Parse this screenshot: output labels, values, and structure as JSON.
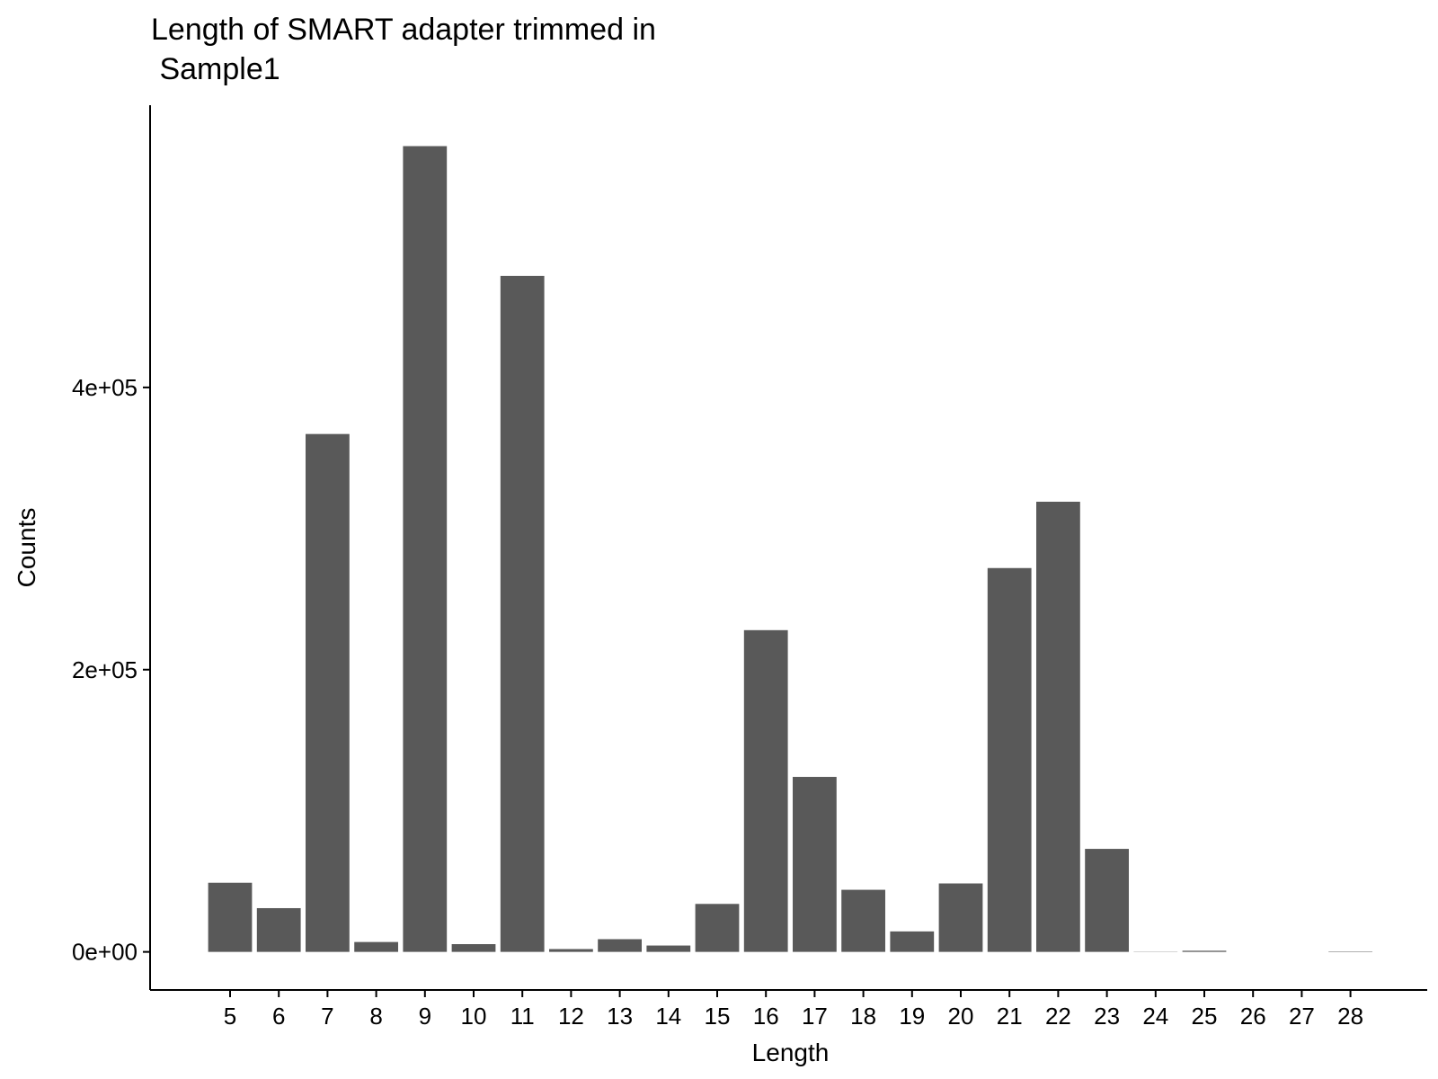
{
  "chart_data": {
    "type": "bar",
    "title_lines": [
      "Length of SMART adapter trimmed in",
      " Sample1"
    ],
    "xlabel": "Length",
    "ylabel": "Counts",
    "categories": [
      "5",
      "6",
      "7",
      "8",
      "9",
      "10",
      "11",
      "12",
      "13",
      "14",
      "15",
      "16",
      "17",
      "18",
      "19",
      "20",
      "21",
      "22",
      "23",
      "24",
      "25",
      "26",
      "27",
      "28"
    ],
    "values": [
      49000,
      31000,
      367000,
      7000,
      571000,
      5500,
      479000,
      2000,
      9000,
      4500,
      34000,
      228000,
      124000,
      44000,
      14500,
      48500,
      272000,
      319000,
      73000,
      150,
      800,
      0,
      0,
      300
    ],
    "ylim": [
      -27000,
      600000
    ],
    "yticks": [
      0,
      200000,
      400000
    ],
    "ytick_labels": [
      "0e+00",
      "2e+05",
      "4e+05"
    ],
    "bar_color": "#595959",
    "grid": false,
    "legend": "none"
  }
}
